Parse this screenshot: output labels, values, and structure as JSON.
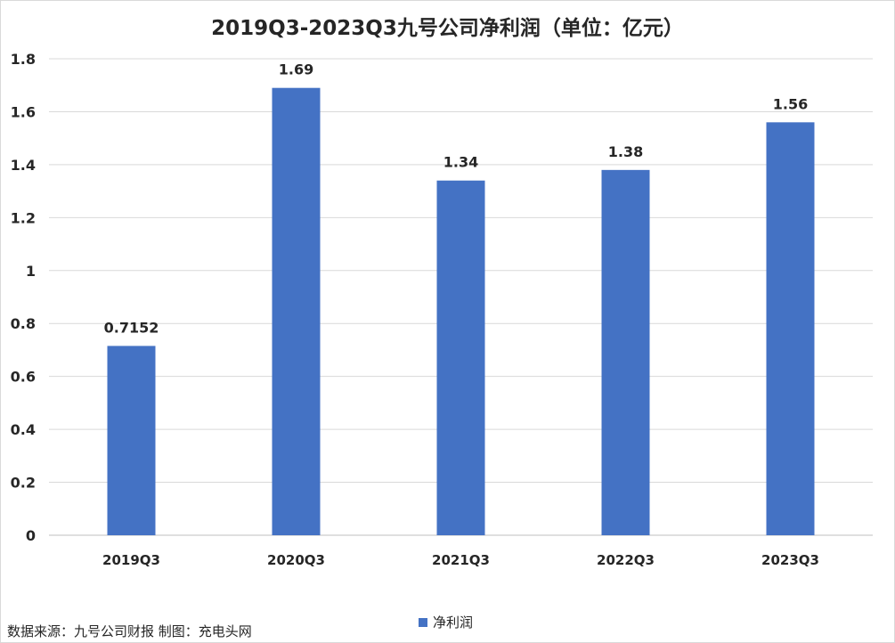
{
  "chart_data": {
    "type": "bar",
    "title": "2019Q3-2023Q3九号公司净利润（单位：亿元）",
    "categories": [
      "2019Q3",
      "2020Q3",
      "2021Q3",
      "2022Q3",
      "2023Q3"
    ],
    "series": [
      {
        "name": "净利润",
        "values": [
          0.7152,
          1.69,
          1.34,
          1.38,
          1.56
        ],
        "color": "#4472c4"
      }
    ],
    "data_labels": [
      "0.7152",
      "1.69",
      "1.34",
      "1.38",
      "1.56"
    ],
    "yticks": [
      "0",
      "0.2",
      "0.4",
      "0.6",
      "0.8",
      "1",
      "1.2",
      "1.4",
      "1.6",
      "1.8"
    ],
    "ylim": [
      0,
      1.8
    ],
    "xlabel": "",
    "ylabel": "",
    "grid": true,
    "legend": "bottom"
  },
  "footer": {
    "source": "数据来源：九号公司财报 制图：充电头网"
  },
  "colors": {
    "bar": "#4472c4",
    "grid": "#d9d9d9",
    "text": "#262626"
  }
}
